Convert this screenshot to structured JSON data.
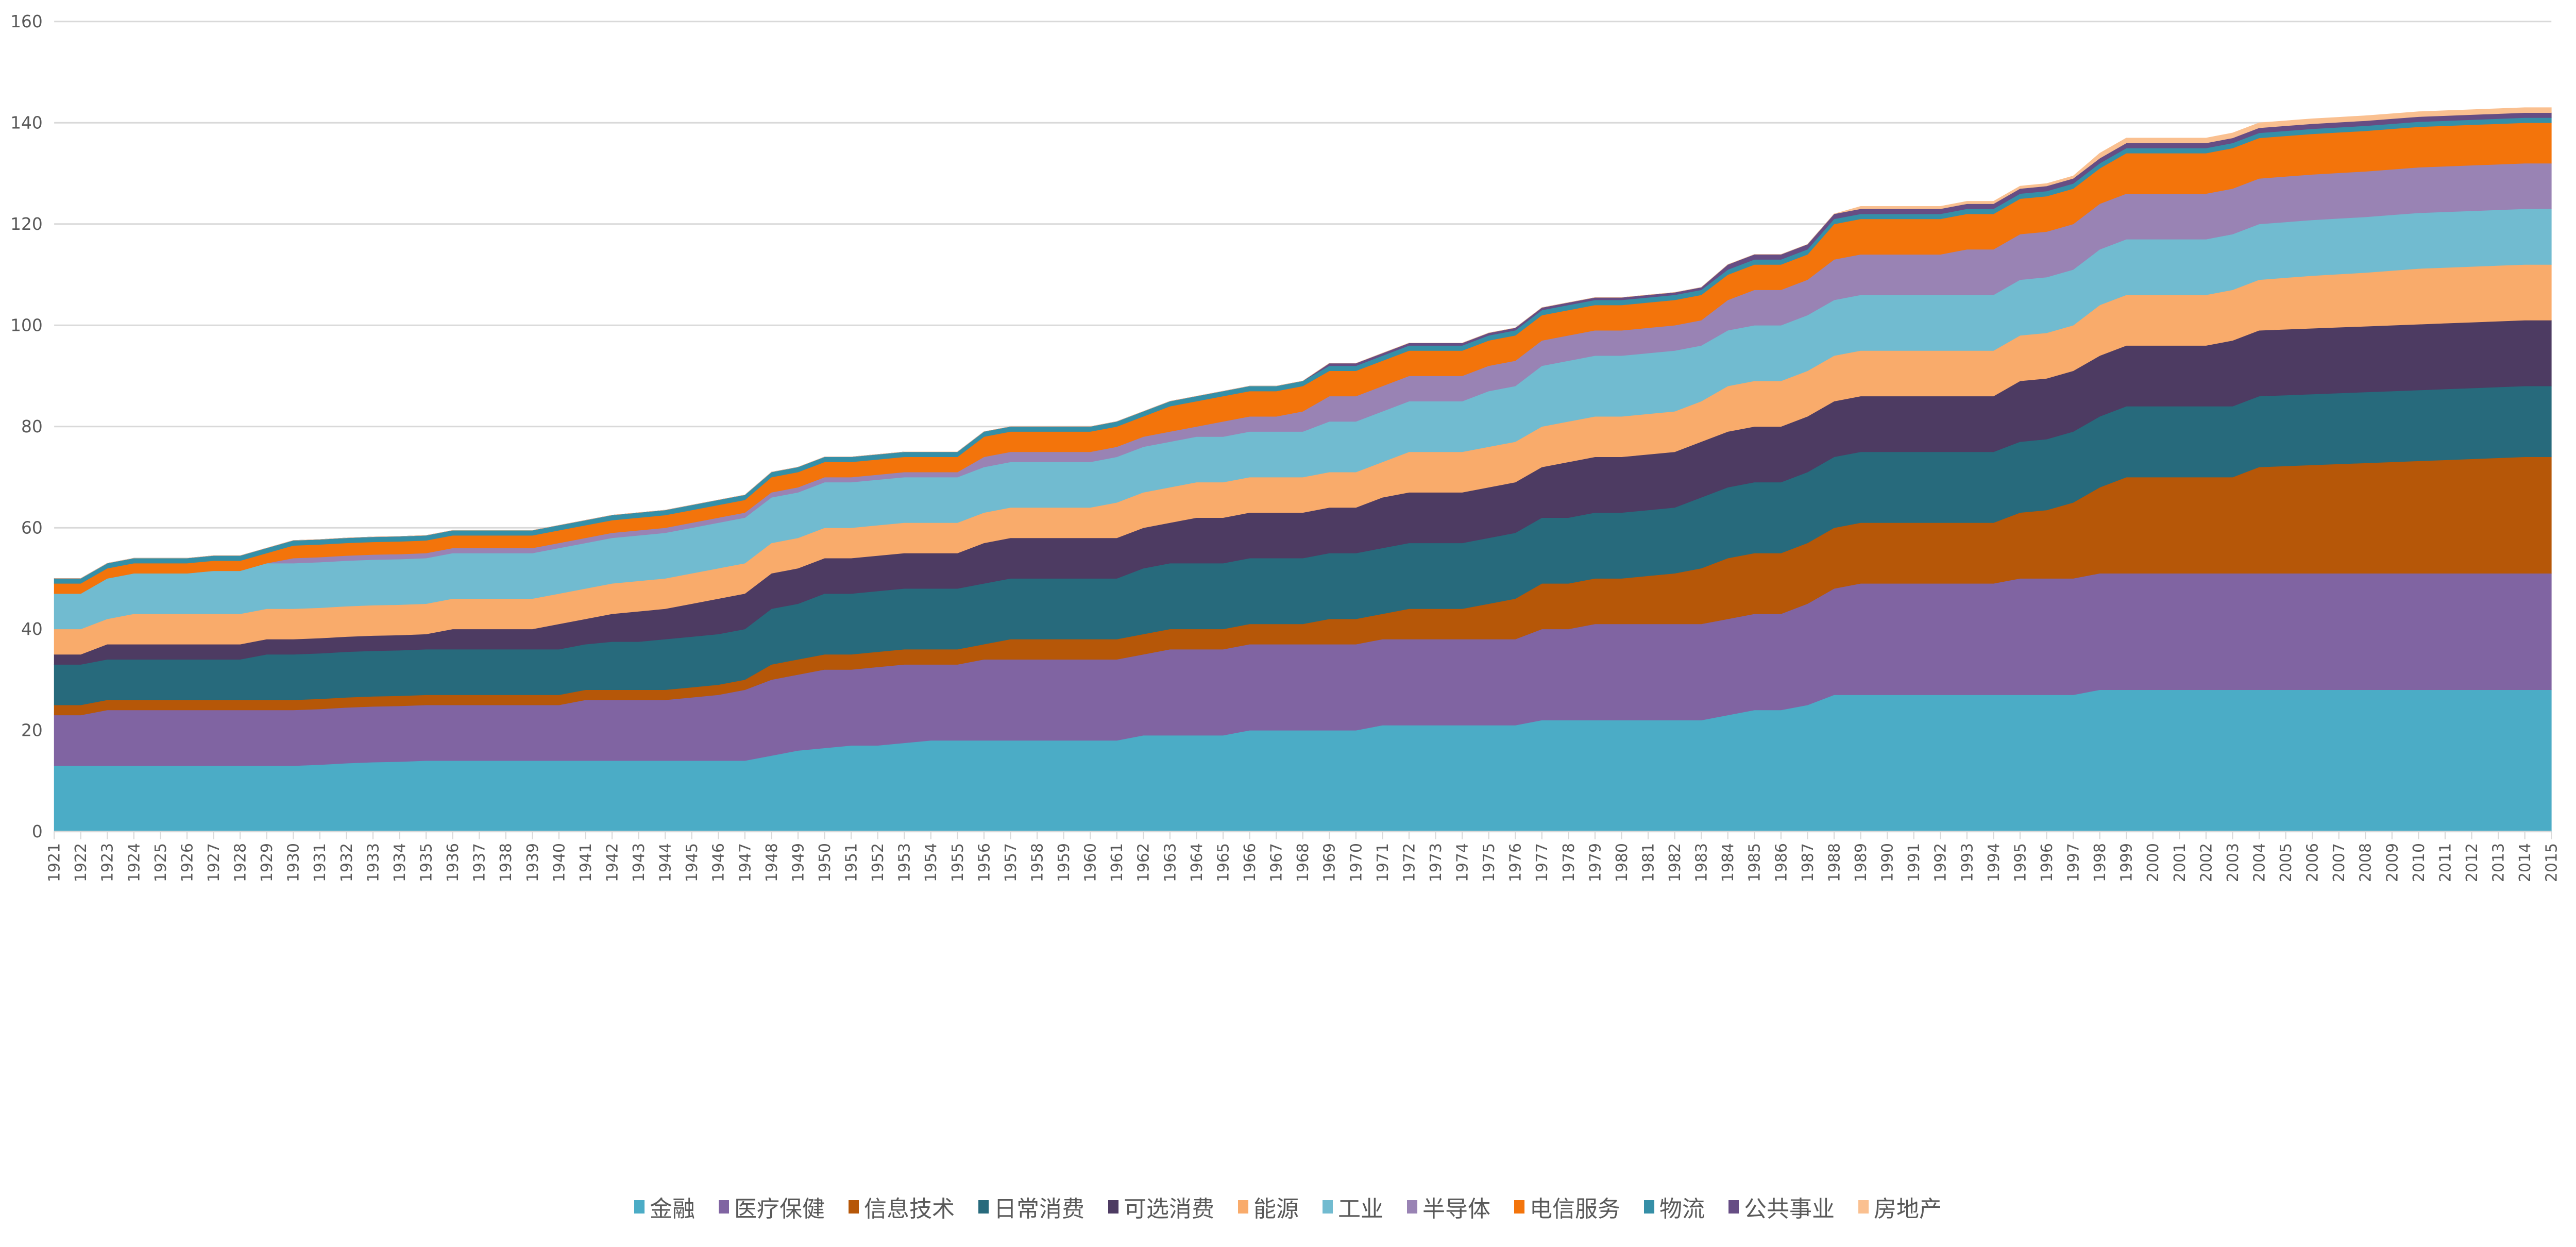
{
  "chart_data": {
    "type": "area",
    "stacked": true,
    "title": "",
    "xlabel": "",
    "ylabel": "",
    "ylim": [
      0,
      160
    ],
    "yticks": [
      0,
      20,
      40,
      60,
      80,
      100,
      120,
      140,
      160
    ],
    "grid": true,
    "legend_position": "bottom",
    "categories": [
      "1921",
      "1922",
      "1923",
      "1924",
      "1925",
      "1926",
      "1927",
      "1928",
      "1929",
      "1930",
      "1931",
      "1932",
      "1933",
      "1934",
      "1935",
      "1936",
      "1937",
      "1938",
      "1939",
      "1940",
      "1941",
      "1942",
      "1943",
      "1944",
      "1945",
      "1946",
      "1947",
      "1948",
      "1949",
      "1950",
      "1951",
      "1952",
      "1953",
      "1954",
      "1955",
      "1956",
      "1957",
      "1958",
      "1959",
      "1960",
      "1961",
      "1962",
      "1963",
      "1964",
      "1965",
      "1966",
      "1967",
      "1968",
      "1969",
      "1970",
      "1971",
      "1972",
      "1973",
      "1974",
      "1975",
      "1976",
      "1977",
      "1978",
      "1979",
      "1980",
      "1981",
      "1982",
      "1983",
      "1984",
      "1985",
      "1986",
      "1987",
      "1988",
      "1989",
      "1990",
      "1991",
      "1992",
      "1993",
      "1994",
      "1995",
      "1996",
      "1997",
      "1998",
      "1999",
      "2000",
      "2001",
      "2002",
      "2003",
      "2004",
      "2005",
      "2006",
      "2007",
      "2008",
      "2009",
      "2010",
      "2011",
      "2012",
      "2013",
      "2014",
      "2015"
    ],
    "series": [
      {
        "name": "金融",
        "color": "#4BACC6",
        "values": [
          13,
          13,
          13,
          13,
          13,
          13,
          13,
          13,
          13,
          13,
          13.2,
          13.5,
          13.7,
          13.8,
          14,
          14,
          14,
          14,
          14,
          14,
          14,
          14,
          14,
          14,
          14,
          14,
          14,
          15,
          16,
          16.5,
          17,
          17,
          17.5,
          18,
          18,
          18,
          18,
          18,
          18,
          18,
          18,
          19,
          19,
          19,
          19,
          20,
          20,
          20,
          20,
          20,
          21,
          21,
          21,
          21,
          21,
          21,
          22,
          22,
          22,
          22,
          22,
          22,
          22,
          23,
          24,
          24,
          25,
          27,
          27,
          27,
          27,
          27,
          27,
          27,
          27,
          27,
          27,
          28,
          28,
          28,
          28,
          28,
          28,
          28,
          28,
          28,
          28,
          28,
          28,
          28,
          28,
          28,
          28,
          28,
          28
        ]
      },
      {
        "name": "医疗保健",
        "color": "#8064A2",
        "values": [
          10,
          10,
          11,
          11,
          11,
          11,
          11,
          11,
          11,
          11,
          11,
          11,
          11,
          11,
          11,
          11,
          11,
          11,
          11,
          11,
          12,
          12,
          12,
          12,
          12.5,
          13,
          14,
          15,
          15,
          15.5,
          15,
          15.5,
          15.5,
          15,
          15,
          16,
          16,
          16,
          16,
          16,
          16,
          16,
          17,
          17,
          17,
          17,
          17,
          17,
          17,
          17,
          17,
          17,
          17,
          17,
          17,
          17,
          18,
          18,
          19,
          19,
          19,
          19,
          19,
          19,
          19,
          19,
          20,
          21,
          22,
          22,
          22,
          22,
          22,
          22,
          23,
          23,
          23,
          23,
          23,
          23,
          23,
          23,
          23,
          23,
          23,
          23,
          23,
          23,
          23,
          23,
          23,
          23,
          23,
          23,
          23
        ]
      },
      {
        "name": "信息技术",
        "color": "#B65708",
        "values": [
          2,
          2,
          2,
          2,
          2,
          2,
          2,
          2,
          2,
          2,
          2,
          2,
          2,
          2,
          2,
          2,
          2,
          2,
          2,
          2,
          2,
          2,
          2,
          2,
          2,
          2,
          2,
          3,
          3,
          3,
          3,
          3,
          3,
          3,
          3,
          3,
          4,
          4,
          4,
          4,
          4,
          4,
          4,
          4,
          4,
          4,
          4,
          4,
          5,
          5,
          5,
          6,
          6,
          6,
          7,
          8,
          9,
          9,
          9,
          9,
          9.5,
          10,
          11,
          12,
          12,
          12,
          12,
          12,
          12,
          12,
          12,
          12,
          12,
          12,
          13,
          13.5,
          15,
          17,
          19,
          19,
          19,
          19,
          19,
          21,
          21.2,
          21.4,
          21.6,
          21.8,
          22,
          22.2,
          22.4,
          22.6,
          22.8,
          23,
          23
        ]
      },
      {
        "name": "日常消费",
        "color": "#276A7C",
        "values": [
          8,
          8,
          8,
          8,
          8,
          8,
          8,
          8,
          9,
          9,
          9,
          9,
          9,
          9,
          9,
          9,
          9,
          9,
          9,
          9,
          9,
          9.5,
          9.5,
          10,
          10,
          10,
          10,
          11,
          11,
          12,
          12,
          12,
          12,
          12,
          12,
          12,
          12,
          12,
          12,
          12,
          12,
          13,
          13,
          13,
          13,
          13,
          13,
          13,
          13,
          13,
          13,
          13,
          13,
          13,
          13,
          13,
          13,
          13,
          13,
          13,
          13,
          13,
          14,
          14,
          14,
          14,
          14,
          14,
          14,
          14,
          14,
          14,
          14,
          14,
          14,
          14,
          14,
          14,
          14,
          14,
          14,
          14,
          14,
          14,
          14,
          14,
          14,
          14,
          14,
          14,
          14,
          14,
          14,
          14,
          14
        ]
      },
      {
        "name": "可选消费",
        "color": "#4D3B62",
        "values": [
          2,
          2,
          3,
          3,
          3,
          3,
          3,
          3,
          3,
          3,
          3,
          3,
          3,
          3,
          3,
          4,
          4,
          4,
          4,
          5,
          5,
          5.5,
          6,
          6,
          6.5,
          7,
          7,
          7,
          7,
          7,
          7,
          7,
          7,
          7,
          7,
          8,
          8,
          8,
          8,
          8,
          8,
          8,
          8,
          9,
          9,
          9,
          9,
          9,
          9,
          9,
          10,
          10,
          10,
          10,
          10,
          10,
          10,
          11,
          11,
          11,
          11,
          11,
          11,
          11,
          11,
          11,
          11,
          11,
          11,
          11,
          11,
          11,
          11,
          11,
          12,
          12,
          12,
          12,
          12,
          12,
          12,
          12,
          13,
          13,
          13,
          13,
          13,
          13,
          13,
          13,
          13,
          13,
          13,
          13,
          13
        ]
      },
      {
        "name": "能源",
        "color": "#F9AB6B",
        "values": [
          5,
          5,
          5,
          6,
          6,
          6,
          6,
          6,
          6,
          6,
          6,
          6,
          6,
          6,
          6,
          6,
          6,
          6,
          6,
          6,
          6,
          6,
          6,
          6,
          6,
          6,
          6,
          6,
          6,
          6,
          6,
          6,
          6,
          6,
          6,
          6,
          6,
          6,
          6,
          6,
          7,
          7,
          7,
          7,
          7,
          7,
          7,
          7,
          7,
          7,
          7,
          8,
          8,
          8,
          8,
          8,
          8,
          8,
          8,
          8,
          8,
          8,
          8,
          9,
          9,
          9,
          9,
          9,
          9,
          9,
          9,
          9,
          9,
          9,
          9,
          9,
          9,
          10,
          10,
          10,
          10,
          10,
          10,
          10,
          10.2,
          10.4,
          10.5,
          10.6,
          10.8,
          11,
          11,
          11,
          11,
          11,
          11
        ]
      },
      {
        "name": "工业",
        "color": "#71BBD0",
        "values": [
          7,
          7,
          8,
          8,
          8,
          8,
          8.5,
          8.5,
          9,
          9,
          9,
          9,
          9,
          9,
          9,
          9,
          9,
          9,
          9,
          9,
          9,
          9,
          9,
          9,
          9,
          9,
          9,
          9,
          9,
          9,
          9,
          9,
          9,
          9,
          9,
          9,
          9,
          9,
          9,
          9,
          9,
          9,
          9,
          9,
          9,
          9,
          9,
          9,
          10,
          10,
          10,
          10,
          10,
          10,
          11,
          11,
          12,
          12,
          12,
          12,
          12,
          12,
          11,
          11,
          11,
          11,
          11,
          11,
          11,
          11,
          11,
          11,
          11,
          11,
          11,
          11,
          11,
          11,
          11,
          11,
          11,
          11,
          11,
          11,
          11,
          11,
          11,
          11,
          11,
          11,
          11,
          11,
          11,
          11,
          11
        ]
      },
      {
        "name": "半导体",
        "color": "#9983B4",
        "values": [
          0,
          0,
          0,
          0,
          0,
          0,
          0,
          0,
          0,
          1,
          1,
          1,
          1,
          1,
          1,
          1,
          1,
          1,
          1,
          1,
          1,
          1,
          1,
          1,
          1,
          1,
          1,
          1,
          1,
          1,
          1,
          1,
          1,
          1,
          1,
          2,
          2,
          2,
          2,
          2,
          2,
          2,
          2,
          2,
          3,
          3,
          3,
          4,
          5,
          5,
          5,
          5,
          5,
          5,
          5,
          5,
          5,
          5,
          5,
          5,
          5,
          5,
          5,
          6,
          7,
          7,
          7,
          8,
          8,
          8,
          8,
          8,
          9,
          9,
          9,
          9,
          9,
          9,
          9,
          9,
          9,
          9,
          9,
          9,
          9,
          9,
          9,
          9,
          9,
          9,
          9,
          9,
          9,
          9,
          9
        ]
      },
      {
        "name": "电信服务",
        "color": "#F3740B",
        "values": [
          2,
          2,
          2,
          2,
          2,
          2,
          2,
          2,
          2,
          2.5,
          2.5,
          2.5,
          2.5,
          2.5,
          2.5,
          2.5,
          2.5,
          2.5,
          2.5,
          2.5,
          2.5,
          2.5,
          2.5,
          2.5,
          2.5,
          2.5,
          2.5,
          3,
          3,
          3,
          3,
          3,
          3,
          3,
          3,
          4,
          4,
          4,
          4,
          4,
          4,
          4,
          5,
          5,
          5,
          5,
          5,
          5,
          5,
          5,
          5,
          5,
          5,
          5,
          5,
          5,
          5,
          5,
          5,
          5,
          5,
          5,
          5,
          5,
          5,
          5,
          5,
          7,
          7,
          7,
          7,
          7,
          7,
          7,
          7,
          7,
          7,
          7,
          8,
          8,
          8,
          8,
          8,
          8,
          8,
          8,
          8,
          8,
          8,
          8,
          8,
          8,
          8,
          8,
          8
        ]
      },
      {
        "name": "物流",
        "color": "#358FA7",
        "values": [
          1,
          1,
          1,
          1,
          1,
          1,
          1,
          1,
          1,
          1,
          1,
          1,
          1,
          1,
          1,
          1,
          1,
          1,
          1,
          1,
          1,
          1,
          1,
          1,
          1,
          1,
          1,
          1,
          1,
          1,
          1,
          1,
          1,
          1,
          1,
          1,
          1,
          1,
          1,
          1,
          1,
          1,
          1,
          1,
          1,
          1,
          1,
          1,
          1,
          1,
          1,
          1,
          1,
          1,
          1,
          1,
          1,
          1,
          1,
          1,
          1,
          1,
          1,
          1,
          1,
          1,
          1,
          1,
          1,
          1,
          1,
          1,
          1,
          1,
          1,
          1,
          1,
          1,
          1,
          1,
          1,
          1,
          1,
          1,
          1,
          1,
          1,
          1,
          1,
          1,
          1,
          1,
          1,
          1,
          1
        ]
      },
      {
        "name": "公共事业",
        "color": "#664D84",
        "values": [
          0,
          0,
          0,
          0,
          0,
          0,
          0,
          0,
          0,
          0,
          0,
          0,
          0,
          0,
          0,
          0,
          0,
          0,
          0,
          0,
          0,
          0,
          0,
          0,
          0,
          0,
          0,
          0,
          0,
          0,
          0,
          0,
          0,
          0,
          0,
          0,
          0,
          0,
          0,
          0,
          0,
          0,
          0,
          0,
          0,
          0,
          0,
          0,
          0.5,
          0.5,
          0.5,
          0.5,
          0.5,
          0.5,
          0.5,
          0.5,
          0.5,
          0.5,
          0.5,
          0.5,
          0.5,
          0.5,
          0.5,
          1,
          1,
          1,
          1,
          1,
          1,
          1,
          1,
          1,
          1,
          1,
          1,
          1,
          1,
          1,
          1,
          1,
          1,
          1,
          1,
          1,
          1,
          1,
          1,
          1,
          1,
          1,
          1,
          1,
          1,
          1,
          1
        ]
      },
      {
        "name": "房地产",
        "color": "#FAC090",
        "values": [
          0,
          0,
          0,
          0,
          0,
          0,
          0,
          0,
          0,
          0,
          0,
          0,
          0,
          0,
          0,
          0,
          0,
          0,
          0,
          0,
          0,
          0,
          0,
          0,
          0,
          0,
          0,
          0,
          0,
          0,
          0,
          0,
          0,
          0,
          0,
          0,
          0,
          0,
          0,
          0,
          0,
          0,
          0,
          0,
          0,
          0,
          0,
          0,
          0,
          0,
          0,
          0,
          0,
          0,
          0,
          0,
          0,
          0,
          0,
          0,
          0,
          0,
          0,
          0,
          0,
          0,
          0,
          0,
          0.5,
          0.5,
          0.5,
          0.5,
          0.5,
          0.5,
          0.5,
          0.5,
          0.5,
          1,
          1,
          1,
          1,
          1,
          1,
          1,
          1,
          1,
          1,
          1,
          1,
          1,
          1,
          1,
          1,
          1,
          1
        ]
      }
    ]
  }
}
